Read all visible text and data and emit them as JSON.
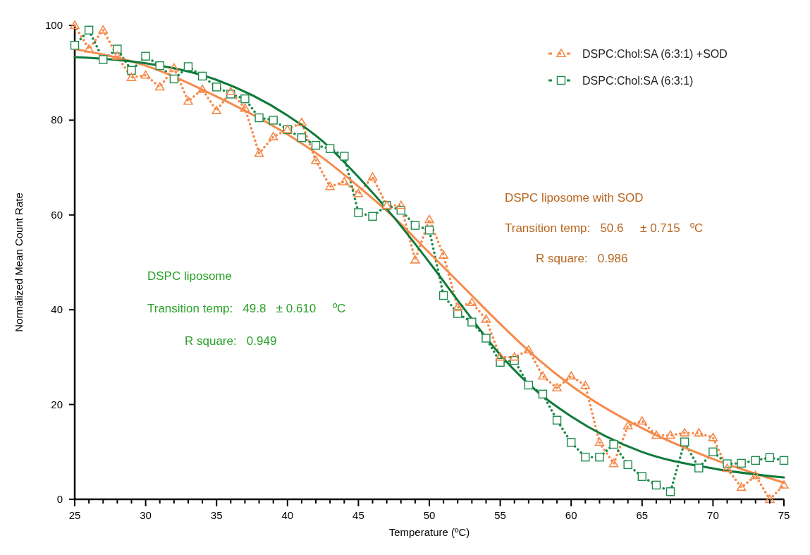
{
  "chart_data": {
    "type": "line",
    "xlabel": "Temperature (ºC)",
    "ylabel": "Normalized  Mean Count Rate",
    "xlim": [
      25,
      75
    ],
    "ylim": [
      0,
      100
    ],
    "xticks": [
      25,
      {
        "value": 26,
        "label": null
      },
      {
        "value": 27,
        "label": null
      },
      {
        "value": 28,
        "label": null
      },
      {
        "value": 29,
        "label": null
      },
      30,
      {
        "value": 31,
        "label": null
      },
      {
        "value": 32,
        "label": null
      },
      {
        "value": 33,
        "label": null
      },
      {
        "value": 34,
        "label": null
      },
      35,
      {
        "value": 36,
        "label": null
      },
      {
        "value": 37,
        "label": null
      },
      {
        "value": 38,
        "label": null
      },
      {
        "value": 39,
        "label": null
      },
      40,
      {
        "value": 41,
        "label": null
      },
      {
        "value": 42,
        "label": null
      },
      {
        "value": 43,
        "label": null
      },
      {
        "value": 44,
        "label": null
      },
      45,
      {
        "value": 46,
        "label": null
      },
      {
        "value": 47,
        "label": null
      },
      {
        "value": 48,
        "label": null
      },
      {
        "value": 49,
        "label": null
      },
      50,
      {
        "value": 51,
        "label": null
      },
      {
        "value": 52,
        "label": null
      },
      {
        "value": 53,
        "label": null
      },
      {
        "value": 54,
        "label": null
      },
      55,
      {
        "value": 56,
        "label": null
      },
      {
        "value": 57,
        "label": null
      },
      {
        "value": 58,
        "label": null
      },
      {
        "value": 59,
        "label": null
      },
      60,
      {
        "value": 61,
        "label": null
      },
      {
        "value": 62,
        "label": null
      },
      {
        "value": 63,
        "label": null
      },
      {
        "value": 64,
        "label": null
      },
      65,
      {
        "value": 66,
        "label": null
      },
      {
        "value": 67,
        "label": null
      },
      {
        "value": 68,
        "label": null
      },
      {
        "value": 69,
        "label": null
      },
      70,
      {
        "value": 71,
        "label": null
      },
      {
        "value": 72,
        "label": null
      },
      {
        "value": 73,
        "label": null
      },
      {
        "value": 74,
        "label": null
      },
      75
    ],
    "yticks": [
      0,
      20,
      40,
      60,
      80,
      100
    ],
    "grid": false,
    "legend": "top right",
    "x": [
      25,
      26,
      27,
      28,
      29,
      30,
      31,
      32,
      33,
      34,
      35,
      36,
      37,
      38,
      39,
      40,
      41,
      42,
      43,
      44,
      45,
      46,
      47,
      48,
      49,
      50,
      51,
      52,
      53,
      54,
      55,
      56,
      57,
      58,
      59,
      60,
      61,
      62,
      63,
      64,
      65,
      66,
      67,
      68,
      69,
      70,
      71,
      72,
      73,
      74,
      75
    ],
    "series": [
      {
        "name": "DSPC:Chol:SA (6:3:1) +SOD",
        "color": "#f58a4b",
        "marker": "triangle",
        "line_style": "dotted",
        "values": [
          100,
          95,
          99,
          93.5,
          89,
          89.5,
          87,
          91,
          84,
          86.5,
          82,
          86,
          82.5,
          73,
          76.5,
          78,
          79.5,
          71.5,
          66,
          67,
          64.5,
          68,
          62,
          62,
          50.5,
          59,
          51.5,
          40.5,
          41.5,
          38,
          30,
          30,
          31.5,
          26,
          23.5,
          26,
          24,
          12,
          7.5,
          15.5,
          16.5,
          13.5,
          13.5,
          14,
          14,
          13,
          6.5,
          2.5,
          5,
          0,
          3
        ]
      },
      {
        "name": "DSPC:Chol:SA (6:3:1)",
        "color": "#1e8a4c",
        "marker": "square",
        "line_style": "dotted",
        "values": [
          95.8,
          99,
          92.8,
          95,
          90.5,
          93.5,
          91.5,
          88.7,
          91.3,
          89.3,
          87,
          85.5,
          84.5,
          80.5,
          80,
          78,
          76.3,
          74.7,
          74,
          72.4,
          60.5,
          59.7,
          62,
          61,
          57.8,
          56.8,
          43,
          39.2,
          37.4,
          34,
          28.9,
          29.3,
          24.1,
          22.2,
          16.7,
          12,
          8.9,
          8.9,
          11.6,
          7.3,
          4.8,
          3,
          1.6,
          12.1,
          6.6,
          10,
          7.5,
          7.6,
          8.2,
          8.8,
          8.2
        ]
      },
      {
        "color": "#f58a4b",
        "marker": "none",
        "line_style": "solid",
        "x": [
          25,
          30,
          35,
          40,
          42.5,
          45,
          47.5,
          50,
          52.5,
          55,
          57.5,
          60,
          65,
          70,
          75
        ],
        "values": [
          95,
          91.5,
          85,
          77,
          72,
          66,
          59.5,
          52,
          44.5,
          37,
          30,
          24,
          15,
          8.5,
          3.5
        ]
      },
      {
        "color": "#0f7a3a",
        "marker": "none",
        "line_style": "solid",
        "x": [
          25,
          30,
          35,
          40,
          42.5,
          45,
          47.5,
          50,
          52.5,
          55,
          57.5,
          60,
          65,
          70,
          75
        ],
        "values": [
          93.3,
          92,
          88.5,
          81,
          75.5,
          68,
          59.5,
          50,
          40,
          30.5,
          23,
          17.5,
          10,
          6.5,
          4.6
        ]
      }
    ],
    "annotations": [
      "DSPC liposome with SOD",
      "Transition temp:   50.6     ± 0.715   ºC",
      "R square:   0.986",
      "DSPC liposome",
      "Transition temp:   49.8   ± 0.610     ºC",
      "R square:   0.949"
    ]
  }
}
